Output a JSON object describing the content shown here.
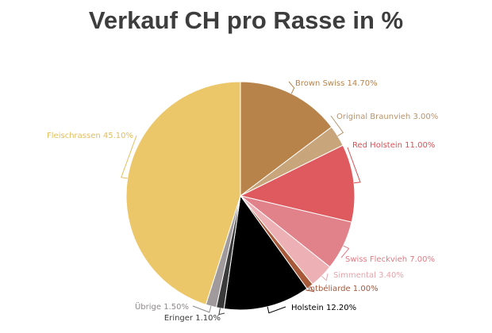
{
  "chart_data": {
    "type": "pie",
    "title": "Verkauf CH pro Rasse in %",
    "slices": [
      {
        "name": "Brown Swiss",
        "value": 14.7,
        "label": "Brown Swiss 14.70%",
        "color": "#b8834a",
        "labelColor": "#b8834a"
      },
      {
        "name": "Original Braunvieh",
        "value": 3.0,
        "label": "Original Braunvieh 3.00%",
        "color": "#c9a57b",
        "labelColor": "#b8936a"
      },
      {
        "name": "Red Holstein",
        "value": 11.0,
        "label": "Red Holstein 11.00%",
        "color": "#df5a5e",
        "labelColor": "#d94f53"
      },
      {
        "name": "Swiss Fleckvieh",
        "value": 7.0,
        "label": "Swiss Fleckvieh 7.00%",
        "color": "#e1818a",
        "labelColor": "#e07b84"
      },
      {
        "name": "Simmental",
        "value": 3.4,
        "label": "Simmental 3.40%",
        "color": "#edb0b4",
        "labelColor": "#e8a3a8"
      },
      {
        "name": "Montbéliarde",
        "value": 1.0,
        "label": "Montbéliarde 1.00%",
        "color": "#a8593a",
        "labelColor": "#a05a3e"
      },
      {
        "name": "Holstein",
        "value": 12.2,
        "label": "Holstein 12.20%",
        "color": "#000000",
        "labelColor": "#000000"
      },
      {
        "name": "Eringer",
        "value": 1.1,
        "label": "Eringer 1.10%",
        "color": "#3a3a3a",
        "labelColor": "#3a3a3a"
      },
      {
        "name": "Übrige",
        "value": 1.5,
        "label": "Übrige 1.50%",
        "color": "#a19a9c",
        "labelColor": "#8f898b"
      },
      {
        "name": "Fleischrassen",
        "value": 45.1,
        "label": "Fleischrassen 45.10%",
        "color": "#ebc76a",
        "labelColor": "#e3bd5c"
      }
    ]
  }
}
